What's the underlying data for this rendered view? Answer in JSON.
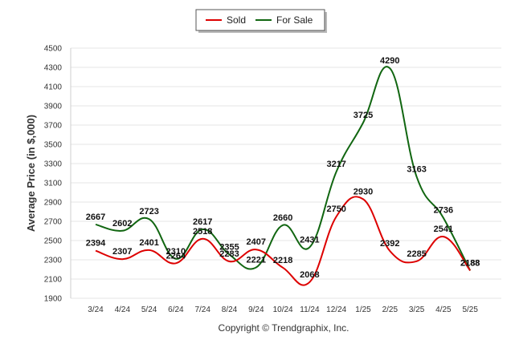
{
  "chart_data": {
    "type": "line",
    "title": "",
    "xlabel": "",
    "ylabel": "Average Price (in $,000)",
    "ylim": [
      1900,
      4500
    ],
    "yticks": [
      1900,
      2100,
      2300,
      2500,
      2700,
      2900,
      3100,
      3300,
      3500,
      3700,
      3900,
      4100,
      4300,
      4500
    ],
    "grid": true,
    "legend_position": "top-center",
    "categories": [
      "3/24",
      "4/24",
      "5/24",
      "6/24",
      "7/24",
      "8/24",
      "9/24",
      "10/24",
      "11/24",
      "12/24",
      "1/25",
      "2/25",
      "3/25",
      "4/25",
      "5/25"
    ],
    "series": [
      {
        "name": "Sold",
        "color": "#dd0000",
        "values": [
          2394,
          2307,
          2401,
          2264,
          2518,
          2283,
          2407,
          2218,
          2068,
          2750,
          2930,
          2392,
          2285,
          2541,
          2188
        ]
      },
      {
        "name": "For Sale",
        "color": "#116611",
        "values": [
          2667,
          2602,
          2723,
          2310,
          2617,
          2355,
          2221,
          2660,
          2431,
          3217,
          3725,
          4290,
          3163,
          2736,
          2188
        ]
      }
    ],
    "footer": "Copyright © Trendgraphix, Inc."
  }
}
